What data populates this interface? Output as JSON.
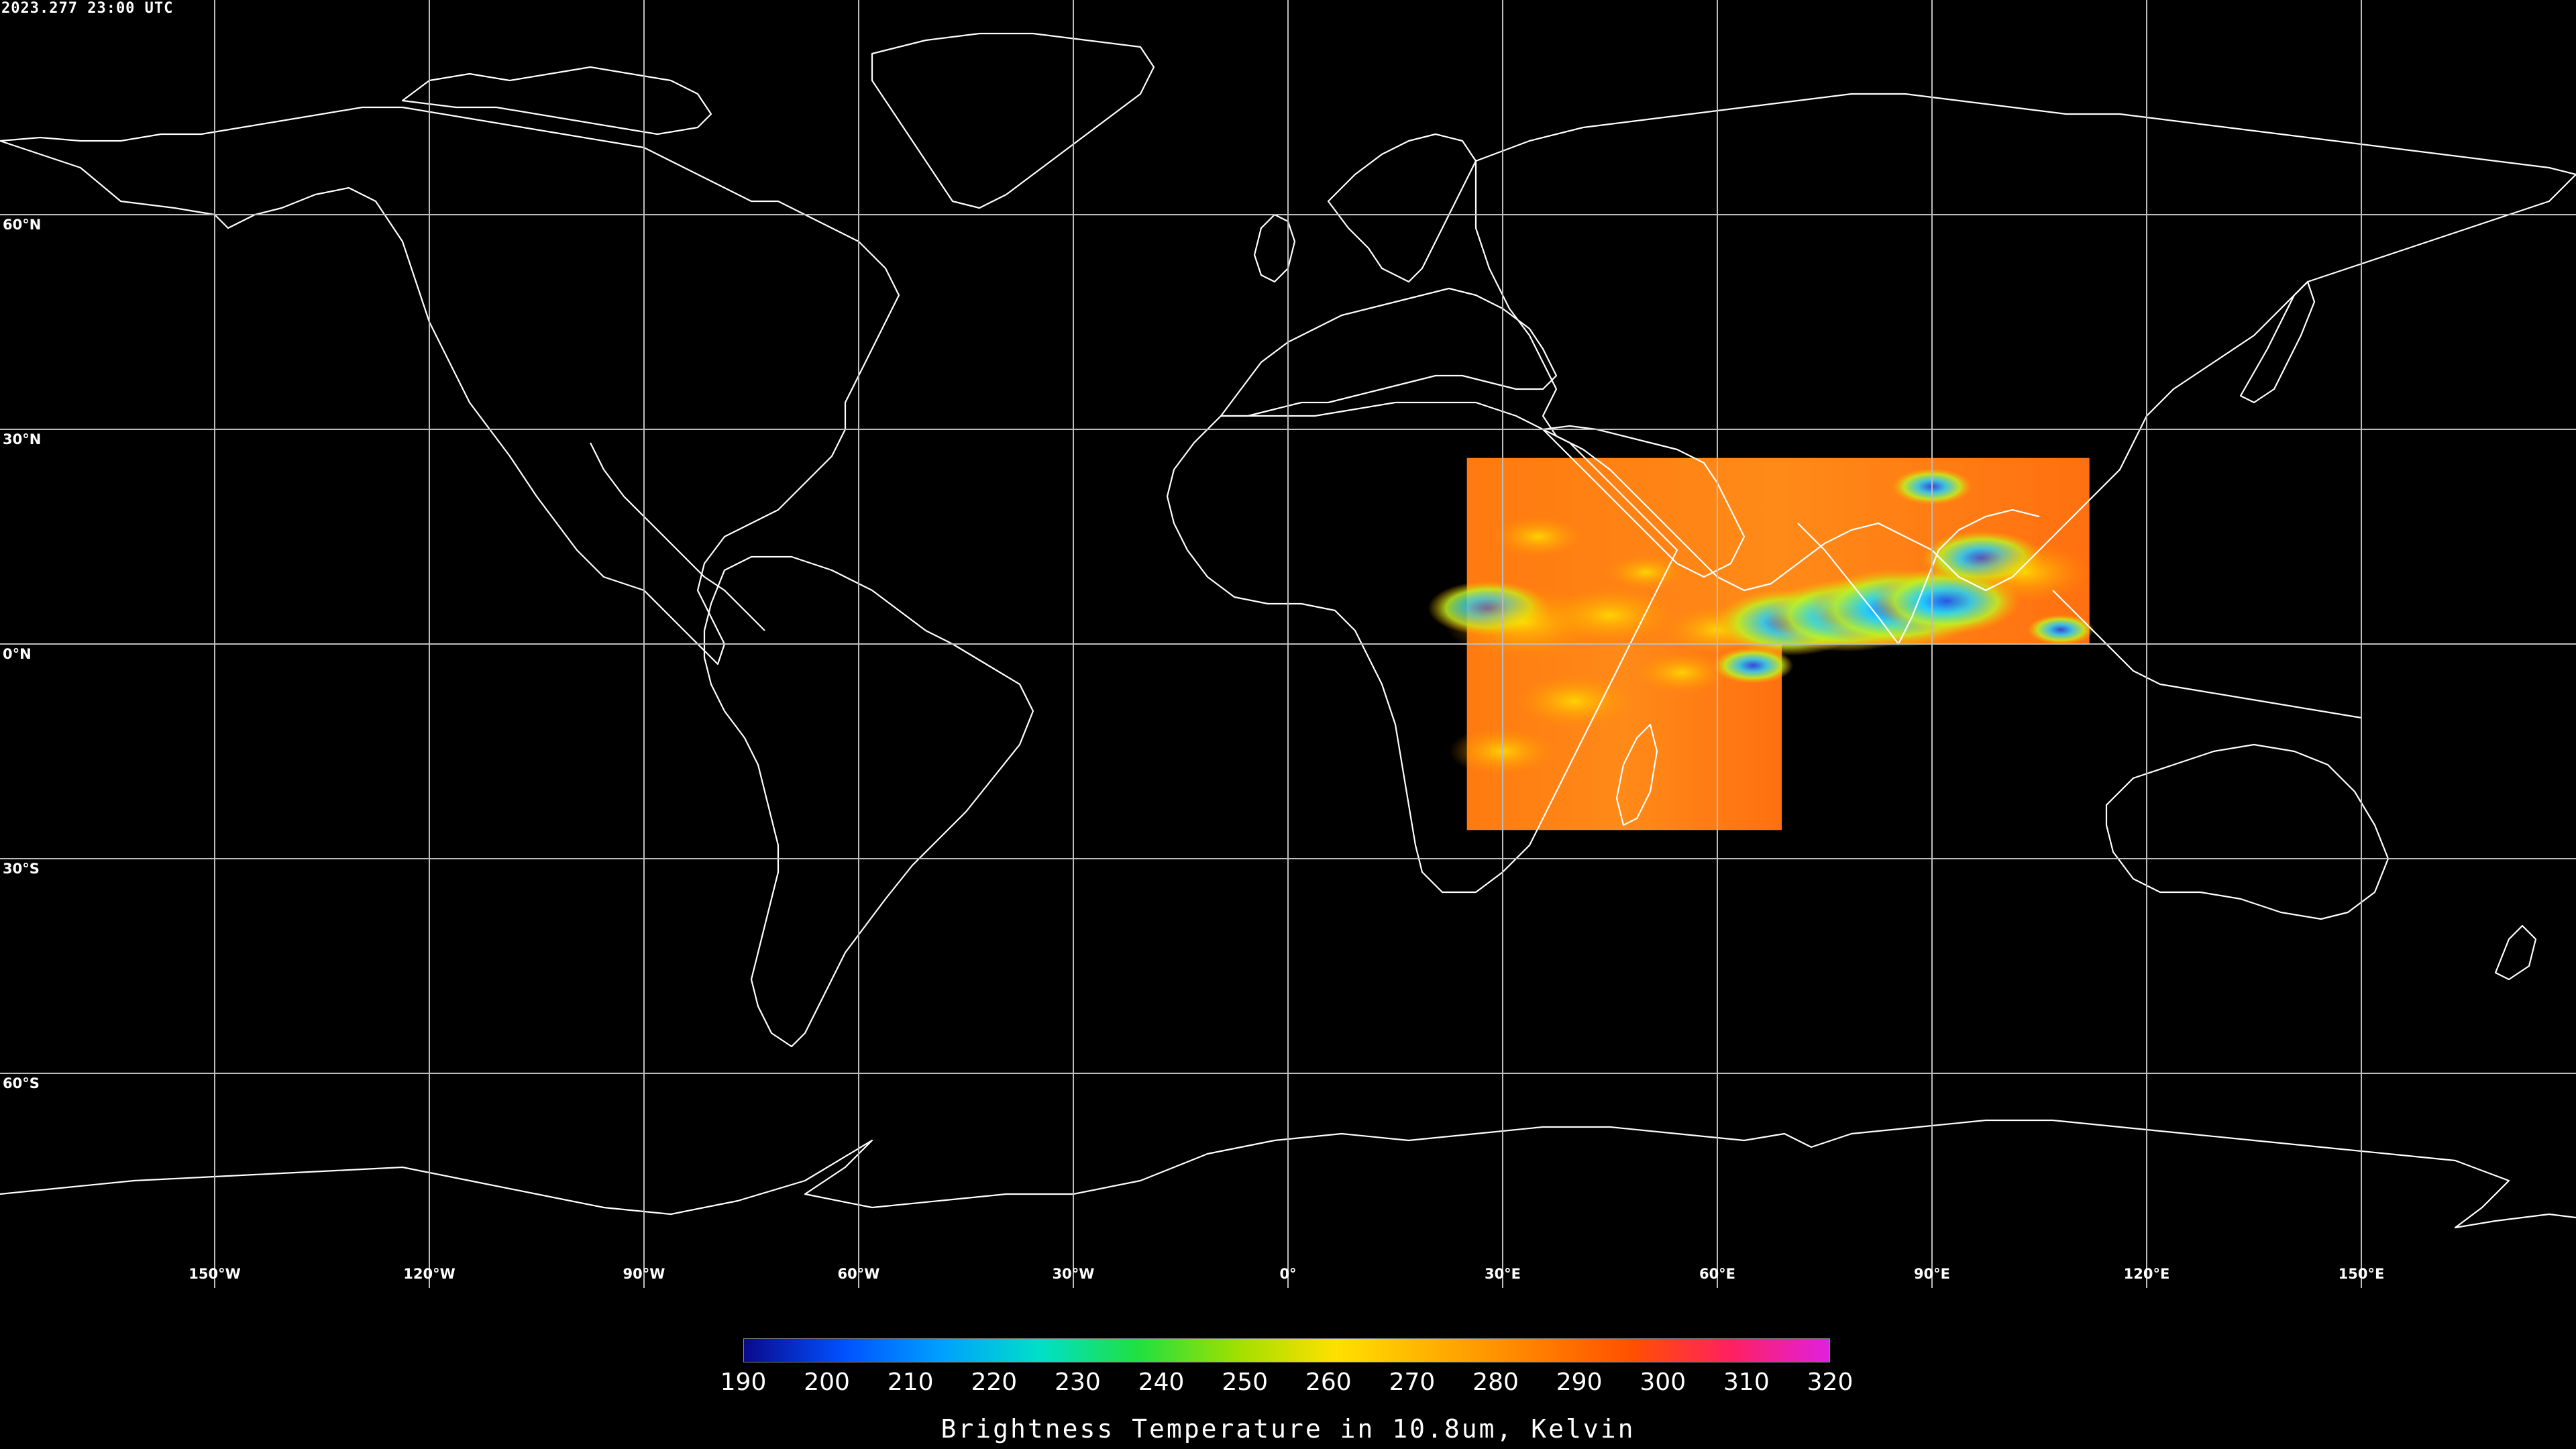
{
  "timestamp": "2023.277 23:00 UTC",
  "map": {
    "projection": "equirectangular",
    "lon_range": [
      -180,
      180
    ],
    "lat_range": [
      -90,
      90
    ],
    "lat_lines": [
      60,
      30,
      0,
      -30,
      -60
    ],
    "lon_lines": [
      -150,
      -120,
      -90,
      -60,
      -30,
      0,
      30,
      60,
      90,
      120,
      150
    ],
    "lat_labels": [
      "60°N",
      "30°N",
      "0°N",
      "30°S",
      "60°S"
    ],
    "lon_labels": [
      "150°W",
      "120°W",
      "90°W",
      "60°W",
      "30°W",
      "0°",
      "30°E",
      "60°E",
      "90°E",
      "120°E",
      "150°E"
    ],
    "data_coverage": {
      "north_block": {
        "lon": [
          25,
          112
        ],
        "lat": [
          0,
          26
        ]
      },
      "south_block": {
        "lon": [
          25,
          69
        ],
        "lat": [
          -26,
          0
        ]
      }
    },
    "grid_color": "#bdbdbd",
    "coast_color": "#ffffff",
    "background": "#000000"
  },
  "colorbar": {
    "title": "Brightness Temperature in 10.8um, Kelvin",
    "min": 190,
    "max": 320,
    "ticks": [
      "190",
      "200",
      "210",
      "220",
      "230",
      "240",
      "250",
      "260",
      "270",
      "280",
      "290",
      "300",
      "310",
      "320"
    ],
    "colors": [
      "#0a0a8c",
      "#0050ff",
      "#00a0ff",
      "#00e0c8",
      "#20e040",
      "#a0e000",
      "#ffe000",
      "#ffb000",
      "#ff8000",
      "#ff5000",
      "#ff2060",
      "#e020e0"
    ]
  }
}
